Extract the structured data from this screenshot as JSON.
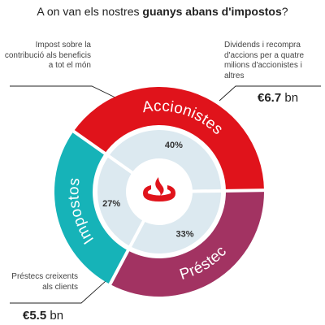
{
  "title": {
    "prefix": "A on van els nostres ",
    "bold": "guanys abans d'impostos",
    "suffix": "?"
  },
  "notes": {
    "taxes": "Impost sobre la contribució als beneficis a tot el món",
    "shareholders": "Dividends i recompra d'accions per a quatre milions d'accionistes i altres",
    "loans": "Préstecs creixents als clients"
  },
  "amounts": {
    "shareholders_value": "€6.7",
    "shareholders_unit": " bn",
    "loans_value": "€5.5",
    "loans_unit": " bn"
  },
  "logo": "santander-flame-logo",
  "colors": {
    "taxes": "#16b3b8",
    "shareholders": "#e0131b",
    "loans": "#a23362",
    "inner": "#dce9f0",
    "logo": "#e0131b"
  },
  "chart_data": {
    "type": "pie",
    "title": "A on van els nostres guanys abans d'impostos?",
    "series": [
      {
        "values": [
          27,
          40,
          33
        ],
        "labels": [
          "27%",
          "40%",
          "33%"
        ]
      }
    ],
    "categories": [
      "Impostos",
      "Accionistes",
      "Préstec"
    ]
  }
}
